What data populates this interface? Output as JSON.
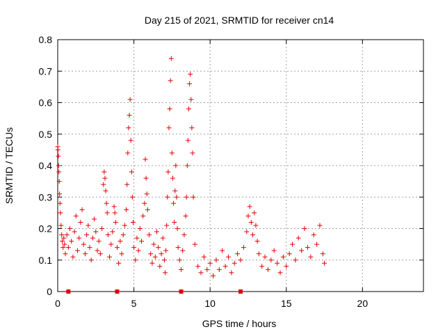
{
  "chart_data": {
    "type": "scatter",
    "title": "Day 215 of 2021, SRMTID for receiver cn14",
    "xlabel": "GPS time / hours",
    "ylabel": "SRMTID / TECUs",
    "xlim": [
      0,
      24
    ],
    "ylim": [
      0,
      0.8
    ],
    "xticks": [
      0,
      5,
      10,
      15,
      20
    ],
    "xtick_labels": [
      "0",
      "5",
      "10",
      "15",
      "20"
    ],
    "yticks": [
      0,
      0.1,
      0.2,
      0.3,
      0.4,
      0.5,
      0.6,
      0.7,
      0.8
    ],
    "ytick_labels": [
      "0",
      "0.1",
      "0.2",
      "0.3",
      "0.4",
      "0.5",
      "0.6",
      "0.7",
      "0.8"
    ],
    "grid": true,
    "marker": "+",
    "color": "#e00000",
    "series": [
      {
        "name": "SRMTID",
        "points": [
          [
            0.0,
            0.46
          ],
          [
            0.02,
            0.45
          ],
          [
            0.04,
            0.43
          ],
          [
            0.06,
            0.4
          ],
          [
            0.08,
            0.38
          ],
          [
            0.1,
            0.35
          ],
          [
            0.12,
            0.31
          ],
          [
            0.15,
            0.28
          ],
          [
            0.18,
            0.25
          ],
          [
            0.22,
            0.21
          ],
          [
            0.26,
            0.18
          ],
          [
            0.3,
            0.16
          ],
          [
            0.35,
            0.14
          ],
          [
            0.4,
            0.17
          ],
          [
            0.45,
            0.15
          ],
          [
            0.5,
            0.12
          ],
          [
            0.6,
            0.18
          ],
          [
            0.7,
            0.14
          ],
          [
            0.8,
            0.2
          ],
          [
            0.9,
            0.16
          ],
          [
            1.0,
            0.11
          ],
          [
            1.1,
            0.19
          ],
          [
            1.2,
            0.24
          ],
          [
            1.3,
            0.13
          ],
          [
            1.4,
            0.17
          ],
          [
            1.5,
            0.22
          ],
          [
            1.6,
            0.26
          ],
          [
            1.7,
            0.15
          ],
          [
            1.8,
            0.12
          ],
          [
            1.9,
            0.18
          ],
          [
            2.0,
            0.21
          ],
          [
            2.1,
            0.14
          ],
          [
            2.2,
            0.1
          ],
          [
            2.3,
            0.17
          ],
          [
            2.4,
            0.23
          ],
          [
            2.5,
            0.19
          ],
          [
            2.6,
            0.13
          ],
          [
            2.7,
            0.16
          ],
          [
            2.8,
            0.12
          ],
          [
            2.9,
            0.2
          ],
          [
            3.0,
            0.34
          ],
          [
            3.05,
            0.38
          ],
          [
            3.1,
            0.36
          ],
          [
            3.15,
            0.32
          ],
          [
            3.2,
            0.28
          ],
          [
            3.25,
            0.25
          ],
          [
            3.3,
            0.18
          ],
          [
            3.4,
            0.11
          ],
          [
            3.5,
            0.15
          ],
          [
            3.6,
            0.19
          ],
          [
            3.7,
            0.27
          ],
          [
            3.75,
            0.25
          ],
          [
            3.8,
            0.22
          ],
          [
            3.9,
            0.14
          ],
          [
            4.0,
            0.09
          ],
          [
            4.1,
            0.16
          ],
          [
            4.2,
            0.12
          ],
          [
            4.3,
            0.18
          ],
          [
            4.4,
            0.21
          ],
          [
            4.5,
            0.26
          ],
          [
            4.55,
            0.34
          ],
          [
            4.6,
            0.44
          ],
          [
            4.65,
            0.52
          ],
          [
            4.7,
            0.56
          ],
          [
            4.75,
            0.61
          ],
          [
            4.8,
            0.48
          ],
          [
            4.85,
            0.38
          ],
          [
            4.9,
            0.3
          ],
          [
            4.95,
            0.22
          ],
          [
            5.0,
            0.14
          ],
          [
            5.1,
            0.1
          ],
          [
            5.2,
            0.17
          ],
          [
            5.3,
            0.13
          ],
          [
            5.4,
            0.2
          ],
          [
            5.5,
            0.16
          ],
          [
            5.6,
            0.24
          ],
          [
            5.7,
            0.28
          ],
          [
            5.75,
            0.42
          ],
          [
            5.8,
            0.36
          ],
          [
            5.85,
            0.31
          ],
          [
            5.9,
            0.26
          ],
          [
            6.0,
            0.18
          ],
          [
            6.1,
            0.12
          ],
          [
            6.2,
            0.09
          ],
          [
            6.3,
            0.15
          ],
          [
            6.4,
            0.11
          ],
          [
            6.5,
            0.19
          ],
          [
            6.6,
            0.14
          ],
          [
            6.7,
            0.08
          ],
          [
            6.8,
            0.12
          ],
          [
            6.9,
            0.17
          ],
          [
            7.0,
            0.1
          ],
          [
            7.05,
            0.06
          ],
          [
            7.1,
            0.13
          ],
          [
            7.15,
            0.21
          ],
          [
            7.2,
            0.3
          ],
          [
            7.25,
            0.38
          ],
          [
            7.3,
            0.52
          ],
          [
            7.35,
            0.58
          ],
          [
            7.4,
            0.67
          ],
          [
            7.45,
            0.74
          ],
          [
            7.5,
            0.44
          ],
          [
            7.55,
            0.36
          ],
          [
            7.6,
            0.28
          ],
          [
            7.65,
            0.22
          ],
          [
            7.7,
            0.32
          ],
          [
            7.75,
            0.4
          ],
          [
            7.8,
            0.3
          ],
          [
            7.85,
            0.2
          ],
          [
            7.9,
            0.14
          ],
          [
            8.0,
            0.1
          ],
          [
            8.1,
            0.07
          ],
          [
            8.2,
            0.13
          ],
          [
            8.3,
            0.18
          ],
          [
            8.4,
            0.24
          ],
          [
            8.45,
            0.3
          ],
          [
            8.5,
            0.4
          ],
          [
            8.55,
            0.48
          ],
          [
            8.6,
            0.58
          ],
          [
            8.65,
            0.66
          ],
          [
            8.7,
            0.69
          ],
          [
            8.75,
            0.61
          ],
          [
            8.8,
            0.52
          ],
          [
            8.85,
            0.44
          ],
          [
            8.9,
            0.3
          ],
          [
            9.0,
            0.15
          ],
          [
            9.2,
            0.08
          ],
          [
            9.4,
            0.06
          ],
          [
            9.6,
            0.11
          ],
          [
            9.8,
            0.07
          ],
          [
            10.0,
            0.09
          ],
          [
            10.2,
            0.05
          ],
          [
            10.4,
            0.1
          ],
          [
            10.6,
            0.07
          ],
          [
            10.8,
            0.13
          ],
          [
            11.0,
            0.08
          ],
          [
            11.2,
            0.11
          ],
          [
            11.4,
            0.06
          ],
          [
            11.6,
            0.09
          ],
          [
            11.8,
            0.12
          ],
          [
            12.0,
            0.1
          ],
          [
            12.2,
            0.14
          ],
          [
            12.4,
            0.19
          ],
          [
            12.5,
            0.24
          ],
          [
            12.6,
            0.27
          ],
          [
            12.7,
            0.22
          ],
          [
            12.8,
            0.18
          ],
          [
            12.9,
            0.25
          ],
          [
            13.0,
            0.21
          ],
          [
            13.1,
            0.16
          ],
          [
            13.2,
            0.12
          ],
          [
            13.4,
            0.08
          ],
          [
            13.6,
            0.11
          ],
          [
            13.8,
            0.07
          ],
          [
            14.0,
            0.1
          ],
          [
            14.2,
            0.13
          ],
          [
            14.4,
            0.09
          ],
          [
            14.6,
            0.06
          ],
          [
            14.8,
            0.11
          ],
          [
            15.0,
            0.08
          ],
          [
            15.2,
            0.12
          ],
          [
            15.4,
            0.15
          ],
          [
            15.6,
            0.1
          ],
          [
            15.8,
            0.17
          ],
          [
            16.0,
            0.13
          ],
          [
            16.2,
            0.2
          ],
          [
            16.4,
            0.14
          ],
          [
            16.6,
            0.11
          ],
          [
            16.8,
            0.18
          ],
          [
            17.0,
            0.15
          ],
          [
            17.2,
            0.21
          ],
          [
            17.4,
            0.12
          ],
          [
            17.5,
            0.09
          ]
        ]
      }
    ],
    "data_gap_markers_x": [
      0.7,
      3.9,
      8.1,
      12.0
    ]
  }
}
